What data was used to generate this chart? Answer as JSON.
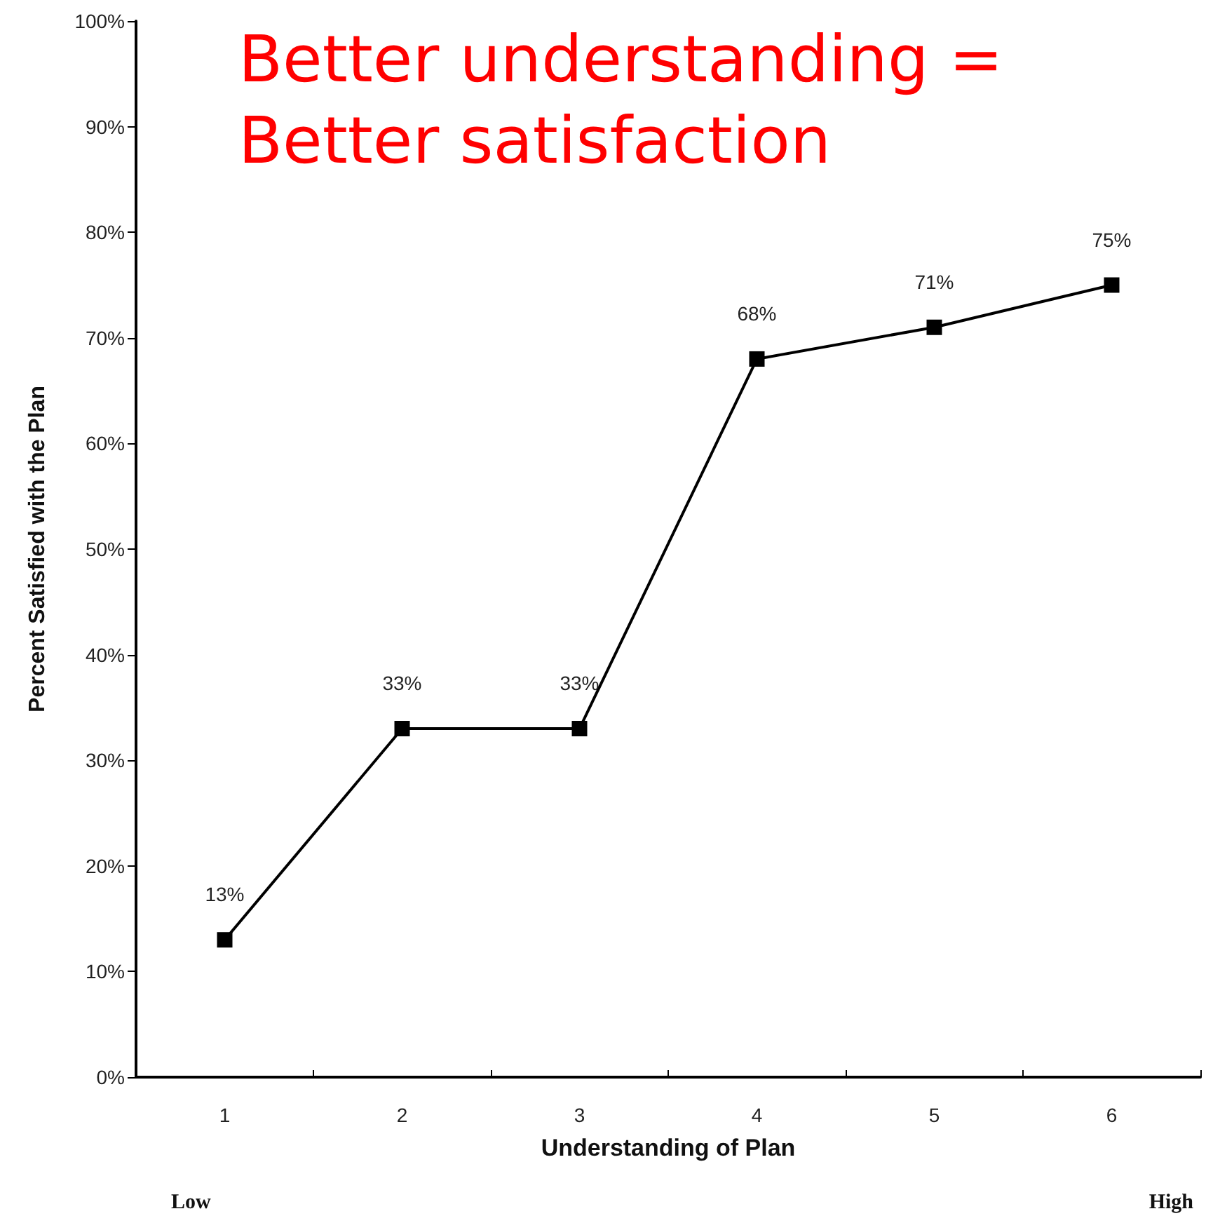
{
  "chart_data": {
    "type": "line",
    "title": "Better understanding = Better satisfaction",
    "xlabel": "Understanding of Plan",
    "ylabel": "Percent Satisfied with the Plan",
    "categories": [
      "1",
      "2",
      "3",
      "4",
      "5",
      "6"
    ],
    "series": [
      {
        "color": "#000000",
        "values": [
          13,
          33,
          33,
          68,
          71,
          75
        ],
        "value_labels": [
          "13%",
          "33%",
          "33%",
          "68%",
          "71%",
          "75%"
        ]
      }
    ],
    "ylim": [
      0,
      100
    ],
    "yticks": [
      {
        "value": 0,
        "label": "0%"
      },
      {
        "value": 10,
        "label": "10%"
      },
      {
        "value": 20,
        "label": "20%"
      },
      {
        "value": 30,
        "label": "30%"
      },
      {
        "value": 40,
        "label": "40%"
      },
      {
        "value": 50,
        "label": "50%"
      },
      {
        "value": 60,
        "label": "60%"
      },
      {
        "value": 70,
        "label": "70%"
      },
      {
        "value": 80,
        "label": "80%"
      },
      {
        "value": 90,
        "label": "90%"
      },
      {
        "value": 100,
        "label": "100%"
      }
    ],
    "annotations": [
      "Low",
      "High"
    ],
    "grid": false,
    "marker": "square",
    "line_style": "solid"
  }
}
